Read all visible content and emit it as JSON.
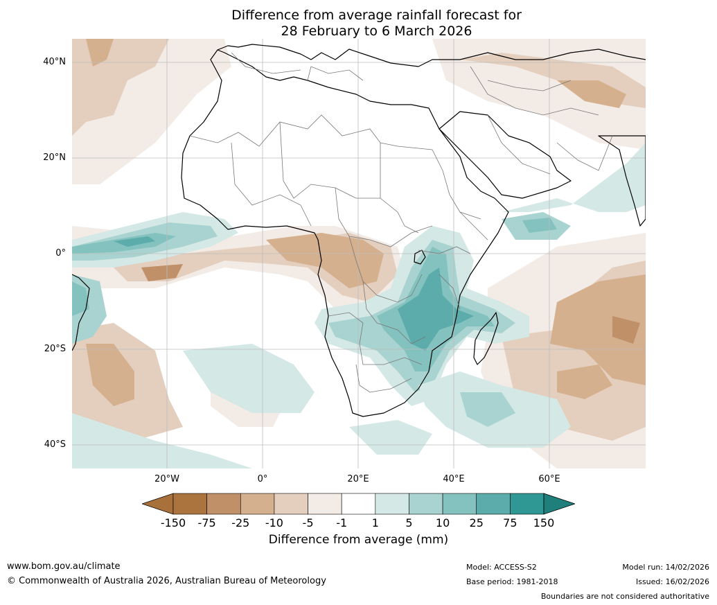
{
  "title": {
    "line1": "Difference from average rainfall forecast for",
    "line2": "28 February to 6 March 2026"
  },
  "axes": {
    "lat_labels": [
      "40°N",
      "20°N",
      "0°",
      "20°S",
      "40°S"
    ],
    "lon_labels": [
      "20°W",
      "0°",
      "20°E",
      "40°E",
      "60°E"
    ]
  },
  "legend": {
    "title": "Difference from average (mm)",
    "ticks": [
      "-150",
      "-75",
      "-25",
      "-10",
      "-5",
      "-1",
      "1",
      "5",
      "10",
      "25",
      "75",
      "150"
    ],
    "colors": [
      "#a8703b",
      "#ab743f",
      "#c09068",
      "#d4b08f",
      "#e4cebd",
      "#f3ebe5",
      "#ffffff",
      "#d4e8e6",
      "#a9d3d0",
      "#84c2c0",
      "#5cacab",
      "#2f9894",
      "#1f7f7b"
    ]
  },
  "footer": {
    "website": "www.bom.gov.au/climate",
    "copyright": "© Commonwealth of Australia 2026, Australian Bureau of Meteorology",
    "model": "Model: ACCESS-S2",
    "base_period": "Base period: 1981-2018",
    "model_run": "Model run: 14/02/2026",
    "issued": "Issued: 16/02/2026",
    "disclaimer": "Boundaries are not considered authoritative"
  }
}
